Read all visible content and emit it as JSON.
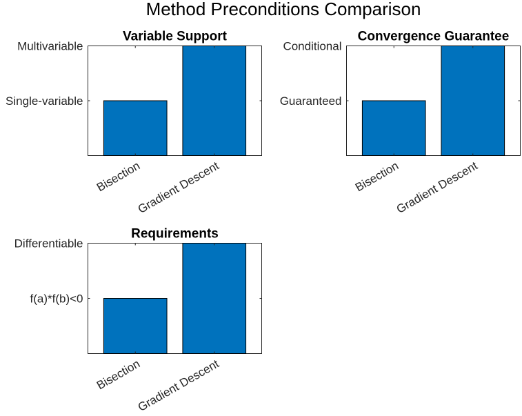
{
  "figure": {
    "title": "Method Preconditions Comparison"
  },
  "colors": {
    "bar": "#0072BD",
    "axis": "#262626"
  },
  "chart_data": [
    {
      "type": "bar",
      "title": "Variable Support",
      "categories": [
        "Bisection",
        "Gradient Descent"
      ],
      "values": [
        1,
        2
      ],
      "ylim": [
        0,
        2
      ],
      "yticks": [
        1,
        2
      ],
      "yticklabels": [
        "Single-variable",
        "Multivariable"
      ],
      "xlabel": "",
      "ylabel": ""
    },
    {
      "type": "bar",
      "title": "Convergence Guarantee",
      "categories": [
        "Bisection",
        "Gradient Descent"
      ],
      "values": [
        1,
        2
      ],
      "ylim": [
        0,
        2
      ],
      "yticks": [
        1,
        2
      ],
      "yticklabels": [
        "Guaranteed",
        "Conditional"
      ],
      "xlabel": "",
      "ylabel": ""
    },
    {
      "type": "bar",
      "title": "Requirements",
      "categories": [
        "Bisection",
        "Gradient Descent"
      ],
      "values": [
        1,
        2
      ],
      "ylim": [
        0,
        2
      ],
      "yticks": [
        1,
        2
      ],
      "yticklabels": [
        "f(a)*f(b)<0",
        "Differentiable"
      ],
      "xlabel": "",
      "ylabel": ""
    }
  ]
}
